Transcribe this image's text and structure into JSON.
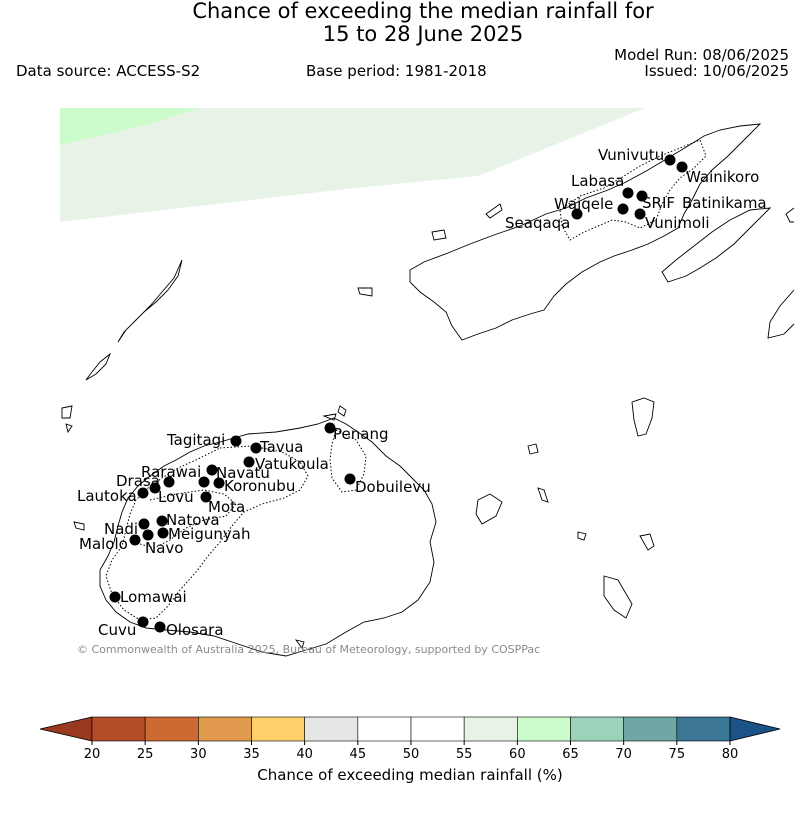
{
  "title_line1": "Chance of exceeding the median rainfall for",
  "title_line2": "15 to 28 June 2025",
  "data_source": "Data source: ACCESS-S2",
  "base_period": "Base period: 1981-2018",
  "model_run": "Model Run: 08/06/2025",
  "issued": "Issued: 10/06/2025",
  "credit": "© Commonwealth of Australia 2025, Bureau of Meteorology, supported by COSPPac",
  "colorbar": {
    "label": "Chance of exceeding median rainfall (%)",
    "ticks": [
      "20",
      "25",
      "30",
      "35",
      "40",
      "45",
      "50",
      "55",
      "60",
      "65",
      "70",
      "75",
      "80"
    ],
    "bins": [
      {
        "from": 20,
        "to": 25,
        "color": "#b34c27"
      },
      {
        "from": 25,
        "to": 30,
        "color": "#cd6a33"
      },
      {
        "from": 30,
        "to": 35,
        "color": "#e19a4e"
      },
      {
        "from": 35,
        "to": 40,
        "color": "#fdd06a"
      },
      {
        "from": 40,
        "to": 45,
        "color": "#e6e6e6"
      },
      {
        "from": 45,
        "to": 50,
        "color": "#ffffff"
      },
      {
        "from": 50,
        "to": 55,
        "color": "#ffffff"
      },
      {
        "from": 55,
        "to": 60,
        "color": "#e8f3e8"
      },
      {
        "from": 60,
        "to": 65,
        "color": "#ccfccc"
      },
      {
        "from": 65,
        "to": 70,
        "color": "#9cd2b9"
      },
      {
        "from": 70,
        "to": 75,
        "color": "#6fa6a6"
      },
      {
        "from": 75,
        "to": 80,
        "color": "#3d7796"
      }
    ],
    "under_color": "#99391f",
    "over_color": "#1b5388"
  },
  "stations": [
    {
      "name": "Vunivutu"
    },
    {
      "name": "Wainikoro"
    },
    {
      "name": "Labasa"
    },
    {
      "name": "Waiqele"
    },
    {
      "name": "SRIF"
    },
    {
      "name": "Batinikama"
    },
    {
      "name": "Seaqaqa"
    },
    {
      "name": "Vunimoli"
    },
    {
      "name": "Tagitagi"
    },
    {
      "name": "Tavua"
    },
    {
      "name": "Penang"
    },
    {
      "name": "Vatukoula"
    },
    {
      "name": "Rarawai"
    },
    {
      "name": "Navatu"
    },
    {
      "name": "Drasa"
    },
    {
      "name": "Koronubu"
    },
    {
      "name": "Dobuilevu"
    },
    {
      "name": "Lautoka"
    },
    {
      "name": "Lovu"
    },
    {
      "name": "Mota"
    },
    {
      "name": "Natova"
    },
    {
      "name": "Nadi"
    },
    {
      "name": "Meigunyah"
    },
    {
      "name": "Malolo"
    },
    {
      "name": "Navo"
    },
    {
      "name": "Lomawai"
    },
    {
      "name": "Cuvu"
    },
    {
      "name": "Olosara"
    }
  ]
}
